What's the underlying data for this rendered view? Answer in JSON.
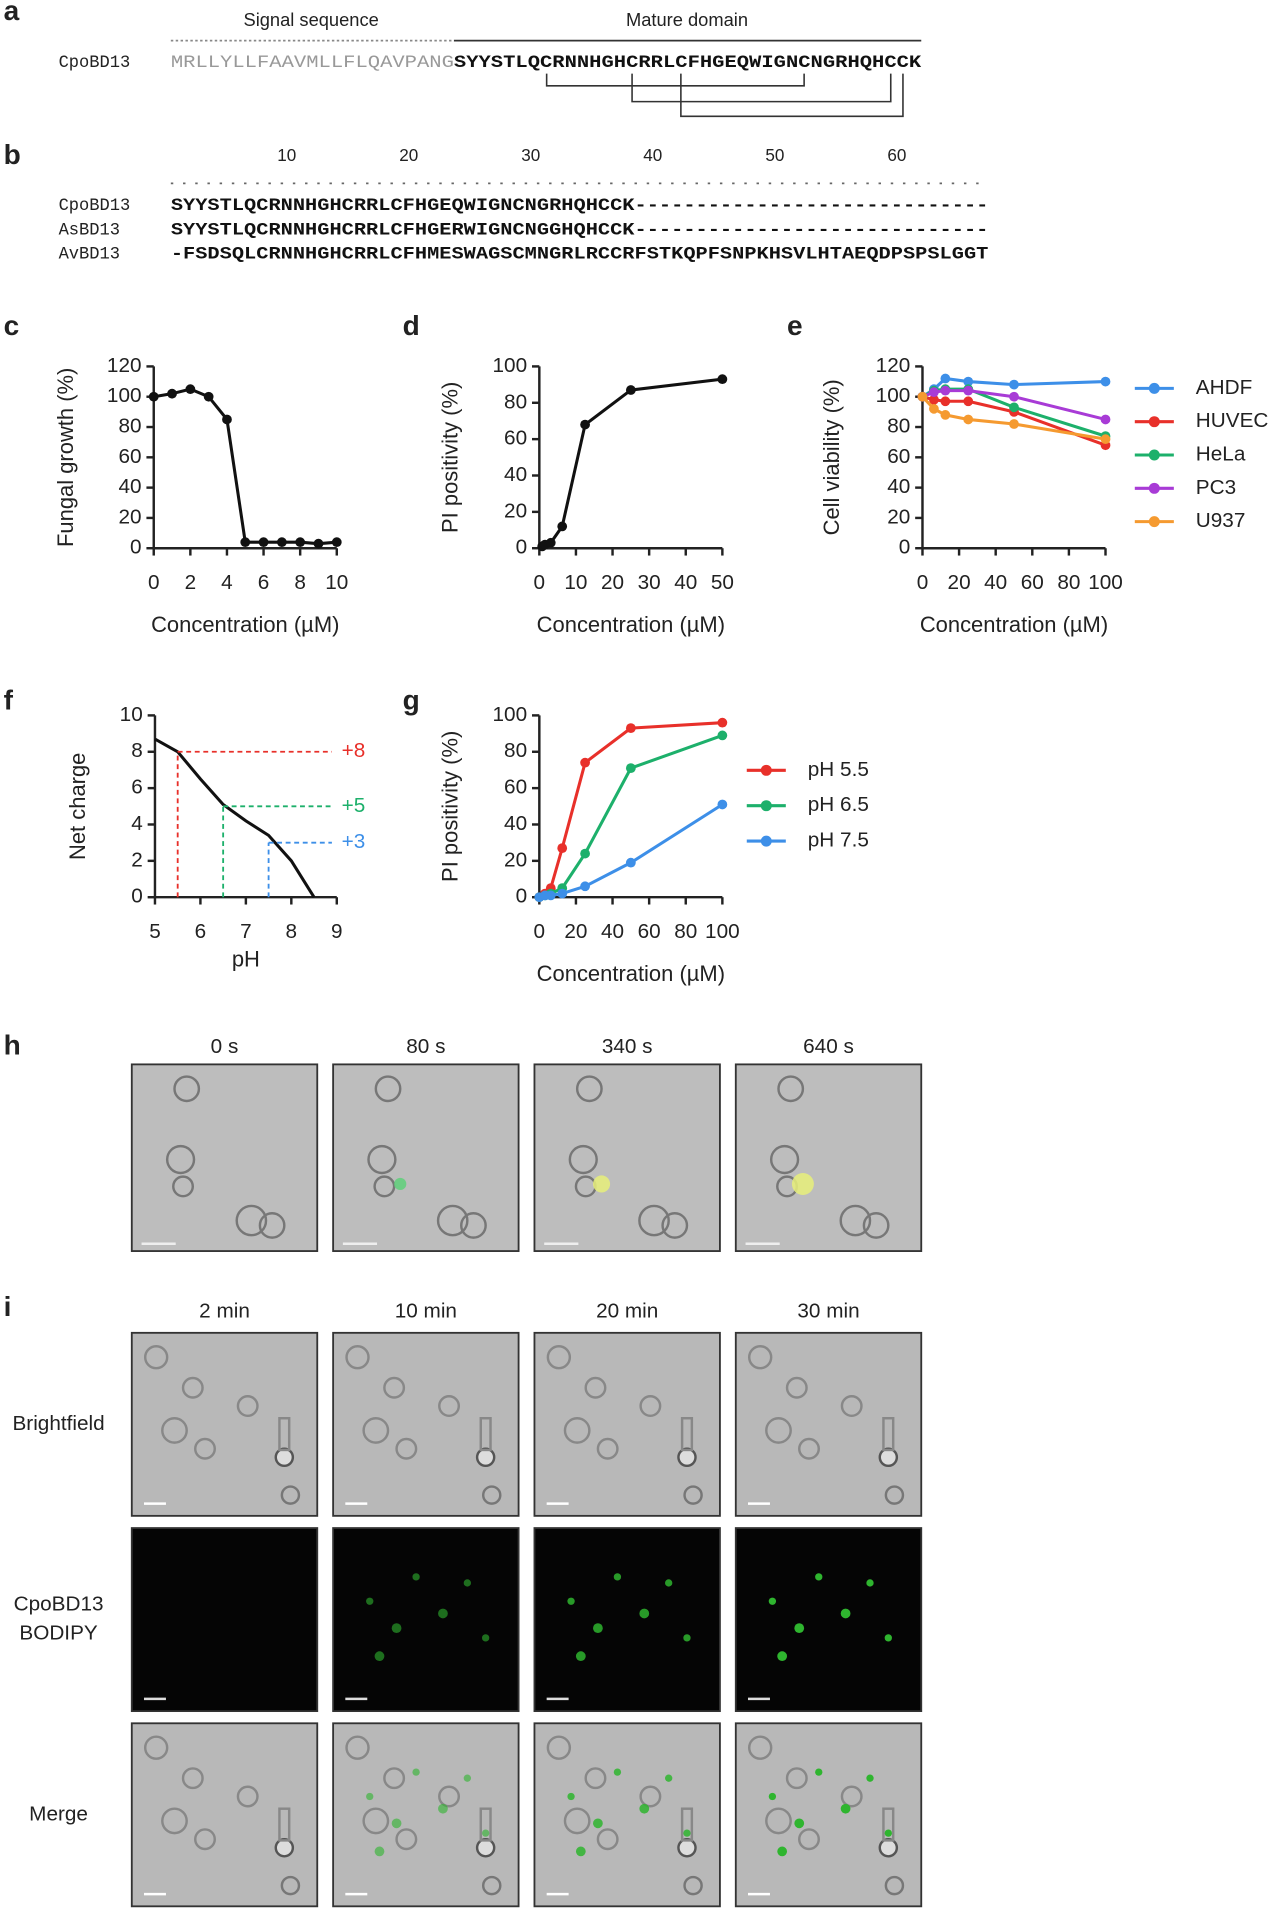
{
  "sequence_panel": {
    "label": "a",
    "signal_header": "Signal sequence",
    "mature_header": "Mature domain",
    "name": "CpoBD13",
    "signal": "MRLLYLLFAAVMLLFLQAVPANG",
    "mature": "SYYSTLQCRNNHGHCRRLCFHGEQWIGNCNGRHQHCCK"
  },
  "alignment_panel": {
    "label": "b",
    "ruler": [
      10,
      20,
      30,
      40,
      50,
      60
    ],
    "rows": [
      {
        "name": "CpoBD13",
        "sequence": "SYYSTLQCRNNHGHCRRLCFHGEQWIGNCNGRHQHCCK-----------------------------"
      },
      {
        "name": "AsBD13",
        "sequence": "SYYSTLQCRNNHGHCRRLCFHGERWIGNCNGGHQHCCK-----------------------------"
      },
      {
        "name": "AvBD13",
        "sequence": "-FSDSQLCRNNHGHCRRLCFHMESWAGSCMNGRLRCCRFSTKQPFSNPKHSVLHTAEQDPSPSLGGT"
      }
    ]
  },
  "chart_data": [
    {
      "type": "line",
      "panel": "c",
      "xlabel": "Concentration (µM)",
      "ylabel": "Fungal growth (%)",
      "x": [
        0,
        1,
        2,
        3,
        4,
        5,
        6,
        7,
        8,
        9,
        10
      ],
      "values": [
        100,
        102,
        105,
        100,
        85,
        4,
        4,
        4,
        4,
        3,
        4
      ],
      "color": "#111111",
      "markers": true,
      "xlim": [
        0,
        10
      ],
      "xticks": [
        0,
        2,
        4,
        6,
        8,
        10
      ],
      "ylim": [
        0,
        120
      ],
      "yticks": [
        0,
        20,
        40,
        60,
        80,
        100,
        120
      ]
    },
    {
      "type": "line",
      "panel": "d",
      "xlabel": "Concentration (µM)",
      "ylabel": "PI positivity (%)",
      "x": [
        0.78,
        1.56,
        3.125,
        6.25,
        12.5,
        25,
        50
      ],
      "values": [
        1,
        2,
        3,
        12,
        68,
        87,
        93
      ],
      "color": "#111111",
      "markers": true,
      "xlim": [
        0,
        50
      ],
      "xticks": [
        0,
        10,
        20,
        30,
        40,
        50
      ],
      "ylim": [
        0,
        100
      ],
      "yticks": [
        0,
        20,
        40,
        60,
        80,
        100
      ]
    },
    {
      "type": "line",
      "panel": "e",
      "xlabel": "Concentration (µM)",
      "ylabel": "Cell viability (%)",
      "markers": true,
      "x": [
        0,
        6.25,
        12.5,
        25,
        50,
        100
      ],
      "series": [
        {
          "name": "AHDF",
          "color": "#3d8fe8",
          "values": [
            100,
            105,
            112,
            110,
            108,
            110
          ]
        },
        {
          "name": "HUVEC",
          "color": "#e8302a",
          "values": [
            100,
            98,
            97,
            97,
            90,
            68
          ]
        },
        {
          "name": "HeLa",
          "color": "#1db06b",
          "values": [
            100,
            104,
            105,
            105,
            93,
            74
          ]
        },
        {
          "name": "PC3",
          "color": "#a83bd6",
          "values": [
            100,
            103,
            104,
            104,
            100,
            85
          ]
        },
        {
          "name": "U937",
          "color": "#f59a30",
          "values": [
            100,
            92,
            88,
            85,
            82,
            72
          ]
        }
      ],
      "xlim": [
        0,
        100
      ],
      "xticks": [
        0,
        20,
        40,
        60,
        80,
        100
      ],
      "ylim": [
        0,
        120
      ],
      "yticks": [
        0,
        20,
        40,
        60,
        80,
        100,
        120
      ]
    },
    {
      "type": "line",
      "panel": "f",
      "xlabel": "pH",
      "ylabel": "Net charge",
      "markers": false,
      "x": [
        5,
        5.5,
        6,
        6.5,
        7,
        7.5,
        8,
        8.5
      ],
      "values": [
        8.7,
        8.0,
        6.5,
        5.1,
        4.2,
        3.4,
        2.0,
        0
      ],
      "color": "#111111",
      "annotations": [
        {
          "x": 5.5,
          "y": 8,
          "label": "+8",
          "color": "#e8302a"
        },
        {
          "x": 6.5,
          "y": 5,
          "label": "+5",
          "color": "#1db06b"
        },
        {
          "x": 7.5,
          "y": 3,
          "label": "+3",
          "color": "#3d8fe8"
        }
      ],
      "xlim": [
        5,
        9
      ],
      "xticks": [
        5,
        6,
        7,
        8,
        9
      ],
      "ylim": [
        0,
        10
      ],
      "yticks": [
        0,
        2,
        4,
        6,
        8,
        10
      ]
    },
    {
      "type": "line",
      "panel": "g",
      "xlabel": "Concentration (µM)",
      "ylabel": "PI positivity (%)",
      "markers": true,
      "x": [
        0,
        3.125,
        6.25,
        12.5,
        25,
        50,
        100
      ],
      "series": [
        {
          "name": "pH 5.5",
          "color": "#e8302a",
          "values": [
            0,
            2,
            5,
            27,
            74,
            93,
            96
          ]
        },
        {
          "name": "pH 6.5",
          "color": "#1db06b",
          "values": [
            0,
            1,
            2,
            5,
            24,
            71,
            89
          ]
        },
        {
          "name": "pH 7.5",
          "color": "#3d8fe8",
          "values": [
            0,
            1,
            1,
            2,
            6,
            19,
            51
          ]
        }
      ],
      "xlim": [
        0,
        100
      ],
      "xticks": [
        0,
        20,
        40,
        60,
        80,
        100
      ],
      "ylim": [
        0,
        100
      ],
      "yticks": [
        0,
        20,
        40,
        60,
        80,
        100
      ]
    }
  ],
  "timelapse_panel": {
    "label": "h",
    "times": [
      "0 s",
      "80 s",
      "340 s",
      "640 s"
    ]
  },
  "staining_panel": {
    "label": "i",
    "times": [
      "2 min",
      "10 min",
      "20 min",
      "30 min"
    ],
    "rows": [
      [
        "Brightfield"
      ],
      [
        "CpoBD13",
        "BODIPY"
      ],
      [
        "Merge"
      ]
    ]
  }
}
